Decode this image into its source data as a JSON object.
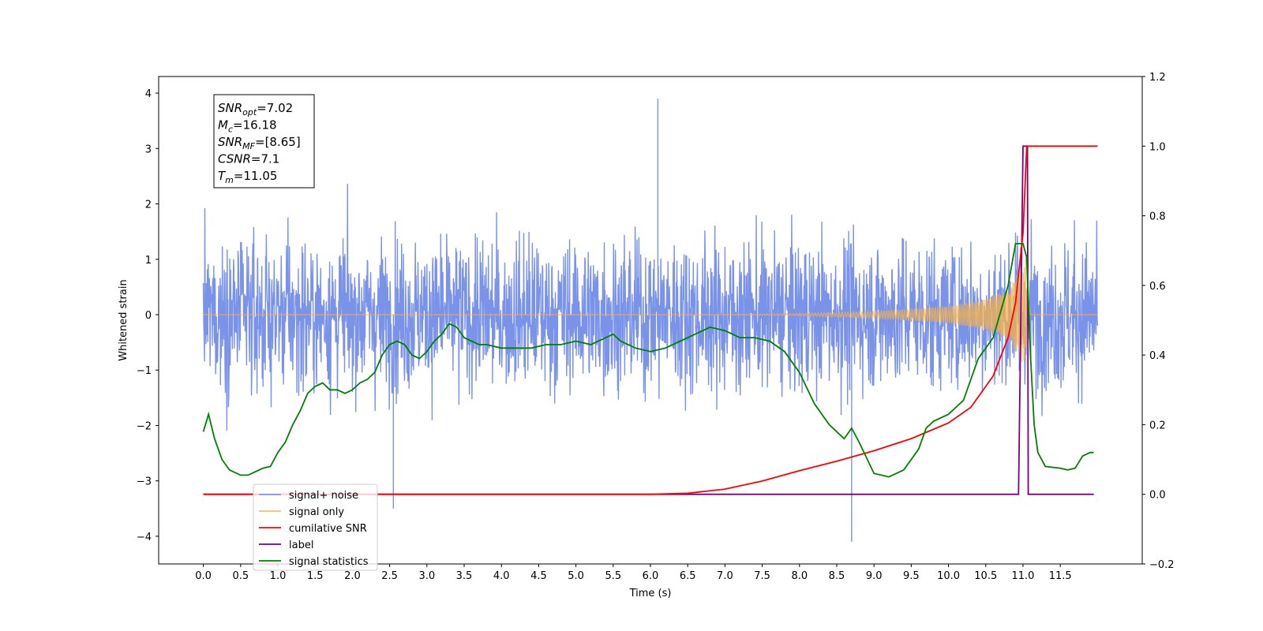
{
  "chart_data": {
    "type": "line",
    "xlabel": "Time (s)",
    "ylabel": "Whitened strain",
    "xlim": [
      -0.6,
      12.6
    ],
    "ylim": [
      -4.5,
      4.3
    ],
    "y2lim": [
      -0.2,
      1.2
    ],
    "x_ticks": [
      "0.0",
      "0.5",
      "1.0",
      "1.5",
      "2.0",
      "2.5",
      "3.0",
      "3.5",
      "4.0",
      "4.5",
      "5.0",
      "5.5",
      "6.0",
      "6.5",
      "7.0",
      "7.5",
      "8.0",
      "8.5",
      "9.0",
      "9.5",
      "10.0",
      "10.5",
      "11.0",
      "11.5"
    ],
    "y_ticks": [
      "4",
      "3",
      "2",
      "1",
      "0",
      "−1",
      "−2",
      "−3",
      "−4"
    ],
    "y2_ticks": [
      "1.2",
      "1.0",
      "0.8",
      "0.6",
      "0.4",
      "0.2",
      "0.0",
      "−0.2"
    ],
    "grid": false,
    "legend_position": "lower-left",
    "annotation": {
      "lines": [
        {
          "base": "SNR",
          "sub": "opt",
          "value": "=7.02"
        },
        {
          "base": "M",
          "sub": "c",
          "value": "=16.18"
        },
        {
          "base": "SNR",
          "sub": "MF",
          "value": "=[8.65]"
        },
        {
          "base": "CSNR",
          "sub": "",
          "value": "=7.1"
        },
        {
          "base": "T",
          "sub": "m",
          "value": "=11.05"
        }
      ]
    },
    "series": [
      {
        "name": "signal+ noise",
        "color": "#6b87e6",
        "axis": "left",
        "description_points": {
          "x": [
            0.0,
            12.0
          ],
          "amplitude_envelope": [
            2.5,
            2.5
          ],
          "extremes": [
            [
              6.1,
              3.9
            ],
            [
              8.7,
              -4.1
            ],
            [
              2.55,
              -3.5
            ]
          ]
        }
      },
      {
        "name": "signal only",
        "color": "#f5b14a",
        "axis": "left",
        "x": [
          0.0,
          7.0,
          8.0,
          9.0,
          10.0,
          10.5,
          10.8,
          11.0,
          11.05,
          11.1,
          12.0
        ],
        "envelope": [
          0.0,
          0.0,
          0.02,
          0.06,
          0.15,
          0.28,
          0.45,
          0.9,
          1.1,
          0.0,
          0.0
        ]
      },
      {
        "name": "cumilative SNR",
        "color": "#ff0000",
        "axis": "right",
        "x": [
          0.0,
          6.0,
          6.5,
          7.0,
          7.5,
          8.0,
          8.5,
          9.0,
          9.5,
          10.0,
          10.3,
          10.6,
          10.8,
          10.9,
          11.0,
          11.05,
          11.1,
          12.0
        ],
        "values": [
          0.0,
          0.0,
          0.003,
          0.015,
          0.038,
          0.068,
          0.095,
          0.125,
          0.16,
          0.205,
          0.25,
          0.34,
          0.45,
          0.55,
          0.75,
          1.0,
          1.0,
          1.0
        ]
      },
      {
        "name": "label",
        "color": "#7b0080",
        "axis": "right",
        "x": [
          0.0,
          10.94,
          11.0,
          11.06,
          11.07,
          11.95
        ],
        "values": [
          0.0,
          0.0,
          1.0,
          1.0,
          0.0,
          0.0
        ]
      },
      {
        "name": "signal statistics",
        "color": "#008000",
        "axis": "right",
        "x": [
          0.0,
          0.07,
          0.15,
          0.25,
          0.35,
          0.5,
          0.6,
          0.7,
          0.8,
          0.9,
          1.0,
          1.1,
          1.2,
          1.3,
          1.4,
          1.5,
          1.6,
          1.7,
          1.8,
          1.9,
          2.0,
          2.1,
          2.2,
          2.3,
          2.4,
          2.5,
          2.6,
          2.7,
          2.8,
          2.9,
          3.0,
          3.1,
          3.2,
          3.3,
          3.4,
          3.5,
          3.6,
          3.7,
          3.8,
          4.0,
          4.2,
          4.4,
          4.6,
          4.8,
          5.0,
          5.2,
          5.4,
          5.5,
          5.6,
          5.8,
          6.0,
          6.2,
          6.4,
          6.6,
          6.8,
          7.0,
          7.2,
          7.4,
          7.6,
          7.8,
          8.0,
          8.2,
          8.4,
          8.6,
          8.7,
          8.8,
          9.0,
          9.2,
          9.4,
          9.6,
          9.7,
          9.8,
          10.0,
          10.2,
          10.4,
          10.6,
          10.8,
          10.9,
          11.0,
          11.05,
          11.1,
          11.15,
          11.2,
          11.3,
          11.5,
          11.6,
          11.7,
          11.8,
          11.9,
          11.95
        ],
        "values": [
          0.18,
          0.23,
          0.16,
          0.1,
          0.07,
          0.055,
          0.055,
          0.065,
          0.075,
          0.08,
          0.12,
          0.15,
          0.2,
          0.24,
          0.29,
          0.31,
          0.32,
          0.3,
          0.3,
          0.29,
          0.3,
          0.32,
          0.33,
          0.35,
          0.4,
          0.43,
          0.44,
          0.43,
          0.4,
          0.39,
          0.41,
          0.44,
          0.46,
          0.49,
          0.48,
          0.45,
          0.44,
          0.43,
          0.43,
          0.42,
          0.42,
          0.42,
          0.43,
          0.43,
          0.44,
          0.43,
          0.45,
          0.46,
          0.44,
          0.42,
          0.41,
          0.42,
          0.44,
          0.46,
          0.48,
          0.47,
          0.45,
          0.45,
          0.44,
          0.41,
          0.35,
          0.26,
          0.2,
          0.16,
          0.19,
          0.15,
          0.06,
          0.05,
          0.07,
          0.13,
          0.19,
          0.21,
          0.23,
          0.27,
          0.39,
          0.45,
          0.6,
          0.72,
          0.72,
          0.68,
          0.4,
          0.2,
          0.12,
          0.08,
          0.075,
          0.07,
          0.075,
          0.11,
          0.12,
          0.12
        ]
      }
    ]
  }
}
